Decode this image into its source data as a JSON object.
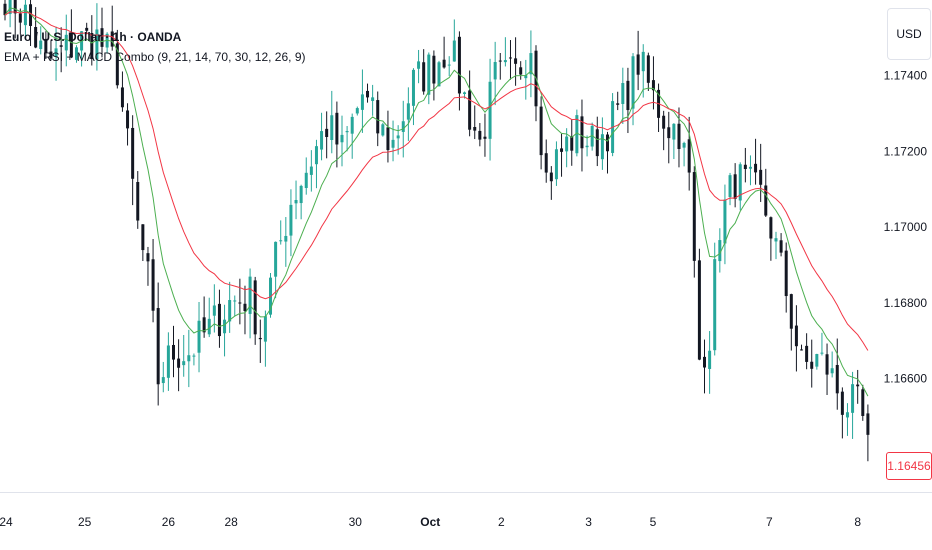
{
  "legend": {
    "symbol": "Euro / U.S. Dollar · 1h · OANDA",
    "indicator": "EMA + RSI + MACD Combo (9, 21, 14, 70, 30, 12, 26, 9)"
  },
  "currency_button": "USD",
  "last_price_label": "1.16456",
  "colors": {
    "up": "#26a69a",
    "down": "#131722",
    "ema_fast": "#4caf50",
    "ema_slow": "#f23645"
  },
  "chart_data": {
    "type": "candlestick",
    "ylim": [
      1.163,
      1.176
    ],
    "y_ticks": [
      "1.17400",
      "1.17200",
      "1.17000",
      "1.16800",
      "1.16600"
    ],
    "x_ticks": [
      "24",
      "25",
      "26",
      "28",
      "30",
      "Oct",
      "2",
      "3",
      "5",
      "7",
      "8"
    ],
    "x_tick_positions": [
      0.2,
      15.6,
      32.0,
      44.3,
      68.6,
      83.3,
      97.2,
      114.3,
      126.9,
      149.7,
      167.0
    ],
    "x_count": 170,
    "anchors": [
      [
        0,
        1.1762
      ],
      [
        4,
        1.1756
      ],
      [
        8,
        1.1743
      ],
      [
        14,
        1.1749
      ],
      [
        18,
        1.175
      ],
      [
        22,
        1.1742
      ],
      [
        26,
        1.17
      ],
      [
        28,
        1.1686
      ],
      [
        30,
        1.166
      ],
      [
        33,
        1.1667
      ],
      [
        36,
        1.1667
      ],
      [
        40,
        1.1673
      ],
      [
        44,
        1.168
      ],
      [
        48,
        1.1682
      ],
      [
        50,
        1.1672
      ],
      [
        53,
        1.1691
      ],
      [
        56,
        1.1707
      ],
      [
        60,
        1.1718
      ],
      [
        63,
        1.1727
      ],
      [
        66,
        1.172
      ],
      [
        70,
        1.1735
      ],
      [
        73,
        1.1726
      ],
      [
        76,
        1.1722
      ],
      [
        80,
        1.1738
      ],
      [
        84,
        1.1743
      ],
      [
        87,
        1.1748
      ],
      [
        90,
        1.1734
      ],
      [
        93,
        1.1722
      ],
      [
        96,
        1.1739
      ],
      [
        100,
        1.174
      ],
      [
        103,
        1.1749
      ],
      [
        106,
        1.1713
      ],
      [
        109,
        1.172
      ],
      [
        112,
        1.1725
      ],
      [
        115,
        1.1722
      ],
      [
        118,
        1.1726
      ],
      [
        121,
        1.1733
      ],
      [
        124,
        1.1744
      ],
      [
        127,
        1.1734
      ],
      [
        130,
        1.1727
      ],
      [
        132,
        1.1726
      ],
      [
        134,
        1.1712
      ],
      [
        136,
        1.1665
      ],
      [
        138,
        1.1672
      ],
      [
        140,
        1.1701
      ],
      [
        143,
        1.1713
      ],
      [
        146,
        1.171
      ],
      [
        148,
        1.1708
      ],
      [
        150,
        1.17
      ],
      [
        153,
        1.1683
      ],
      [
        156,
        1.1663
      ],
      [
        159,
        1.1665
      ],
      [
        161,
        1.1663
      ],
      [
        164,
        1.1654
      ],
      [
        167,
        1.1652
      ],
      [
        169,
        1.1645
      ]
    ],
    "last_price": 1.16456,
    "series": [
      {
        "name": "EMA 9",
        "color": "#4caf50"
      },
      {
        "name": "EMA 21",
        "color": "#f23645"
      }
    ]
  }
}
